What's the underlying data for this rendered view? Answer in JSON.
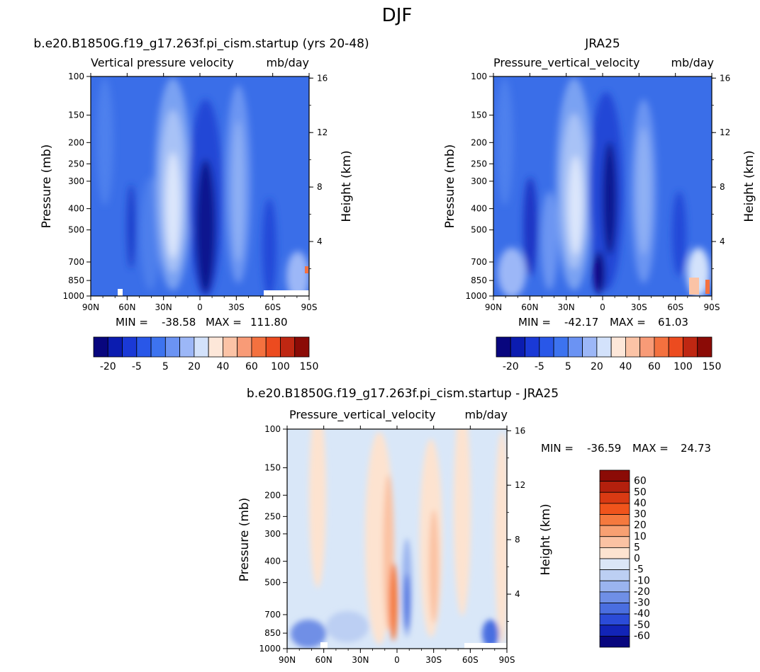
{
  "figure_title": "DJF",
  "chart_data": [
    {
      "type": "heatmap",
      "panel": "model",
      "title": "b.e20.B1850G.f19_g17.263f.pi_cism.startup (yrs 20-48)",
      "variable_label": "Vertical pressure velocity",
      "units_label": "mb/day",
      "ylabel": "Pressure (mb)",
      "y2label": "Height (km)",
      "x_ticks": [
        "90N",
        "60N",
        "30N",
        "0",
        "30S",
        "60S",
        "90S"
      ],
      "y_ticks": [
        "100",
        "150",
        "200",
        "250",
        "300",
        "400",
        "500",
        "700",
        "850",
        "1000"
      ],
      "y2_ticks": [
        "16",
        "12",
        "8",
        "4"
      ],
      "stats": {
        "min_label": "MIN =",
        "min": "-38.58",
        "max_label": "MAX =",
        "max": "111.80"
      },
      "colorbar": {
        "orientation": "horizontal",
        "labels": [
          "-20",
          "-5",
          "5",
          "20",
          "40",
          "60",
          "100",
          "150"
        ],
        "colors": [
          "#08067e",
          "#0b1cb0",
          "#1a39d6",
          "#2957e8",
          "#3d73ef",
          "#6b93f3",
          "#9cb7f7",
          "#d3e2fb",
          "#fde7d9",
          "#fbc3a6",
          "#f89b77",
          "#f4713f",
          "#ec4b1f",
          "#bf2712",
          "#8b0b06"
        ]
      }
    },
    {
      "type": "heatmap",
      "panel": "reanalysis",
      "title": "JRA25",
      "variable_label": "Pressure_vertical_velocity",
      "units_label": "mb/day",
      "ylabel": "Pressure (mb)",
      "y2label": "Height (km)",
      "x_ticks": [
        "90N",
        "60N",
        "30N",
        "0",
        "30S",
        "60S",
        "90S"
      ],
      "y_ticks": [
        "100",
        "150",
        "200",
        "250",
        "300",
        "400",
        "500",
        "700",
        "850",
        "1000"
      ],
      "y2_ticks": [
        "16",
        "12",
        "8",
        "4"
      ],
      "stats": {
        "min_label": "MIN =",
        "min": "-42.17",
        "max_label": "MAX =",
        "max": "61.03"
      },
      "colorbar": {
        "orientation": "horizontal",
        "labels": [
          "-20",
          "-5",
          "5",
          "20",
          "40",
          "60",
          "100",
          "150"
        ],
        "colors": [
          "#08067e",
          "#0b1cb0",
          "#1a39d6",
          "#2957e8",
          "#3d73ef",
          "#6b93f3",
          "#9cb7f7",
          "#d3e2fb",
          "#fde7d9",
          "#fbc3a6",
          "#f89b77",
          "#f4713f",
          "#ec4b1f",
          "#bf2712",
          "#8b0b06"
        ]
      }
    },
    {
      "type": "heatmap",
      "panel": "difference",
      "title": "b.e20.B1850G.f19_g17.263f.pi_cism.startup - JRA25",
      "variable_label": "Pressure_vertical_velocity",
      "units_label": "mb/day",
      "ylabel": "Pressure (mb)",
      "y2label": "Height (km)",
      "x_ticks": [
        "90N",
        "60N",
        "30N",
        "0",
        "30S",
        "60S",
        "90S"
      ],
      "y_ticks": [
        "100",
        "150",
        "200",
        "250",
        "300",
        "400",
        "500",
        "700",
        "850",
        "1000"
      ],
      "y2_ticks": [
        "16",
        "12",
        "8",
        "4"
      ],
      "stats": {
        "min_label": "MIN =",
        "min": "-36.59",
        "max_label": "MAX =",
        "max": "24.73"
      },
      "colorbar": {
        "orientation": "vertical",
        "labels": [
          "60",
          "50",
          "40",
          "30",
          "20",
          "10",
          "5",
          "0",
          "-5",
          "-10",
          "-20",
          "-30",
          "-40",
          "-50",
          "-60"
        ],
        "colors": [
          "#8b0b06",
          "#b3200d",
          "#d93a13",
          "#f0541c",
          "#f5793e",
          "#f8a072",
          "#fbc2a3",
          "#fde3d0",
          "#dbe6f7",
          "#bccff3",
          "#9ab4ef",
          "#6f8fe6",
          "#4a6ee0",
          "#2b4bd8",
          "#1224b8",
          "#08067e"
        ]
      }
    }
  ]
}
